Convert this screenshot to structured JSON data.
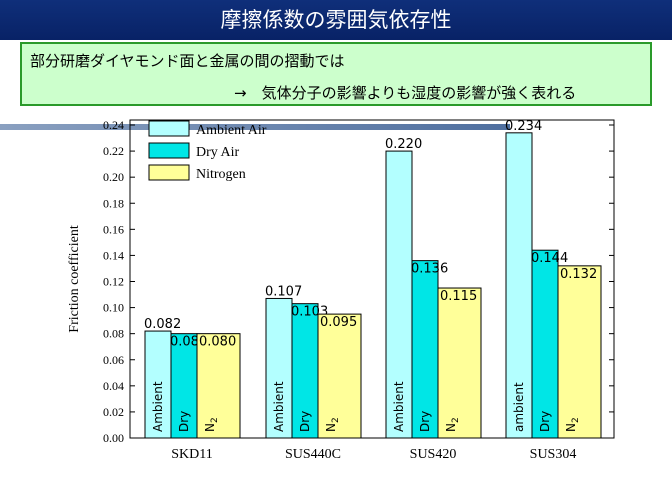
{
  "header": {
    "title": "摩擦係数の雰囲気依存性"
  },
  "subtitle": {
    "line1": "部分研磨ダイヤモンド面と金属の間の摺動では",
    "line2": "→　気体分子の影響よりも湿度の影響が強く表れる"
  },
  "chart_data": {
    "type": "bar",
    "categories": [
      "SKD11",
      "SUS440C",
      "SUS420",
      "SUS304"
    ],
    "series": [
      {
        "name": "Ambient Air",
        "values": [
          0.082,
          0.107,
          0.22,
          0.234
        ],
        "color": "#b3ffff",
        "value_labels": [
          "0.082",
          "0.107",
          "0.220",
          "0.234"
        ],
        "bar_labels": [
          "Ambient",
          "Ambient",
          "Ambient",
          "ambient"
        ]
      },
      {
        "name": "Dry Air",
        "values": [
          0.08,
          0.103,
          0.136,
          0.144
        ],
        "color": "#00e6e6",
        "value_labels": [
          "0.080",
          "0.103",
          "0.136",
          "0.144"
        ],
        "bar_labels": [
          "Dry",
          "Dry",
          "Dry",
          "Dry"
        ]
      },
      {
        "name": "Nitrogen",
        "values": [
          0.08,
          0.095,
          0.115,
          0.132
        ],
        "color": "#ffff99",
        "value_labels": [
          "0.080",
          "0.095",
          "0.115",
          "0.132"
        ],
        "bar_labels": [
          "N2",
          "N2",
          "N2",
          "N2"
        ]
      }
    ],
    "ylabel": "Friction coefficient",
    "xlabel": "",
    "ylim": [
      0,
      0.24
    ],
    "yticks": [
      "0.00",
      "0.02",
      "0.04",
      "0.06",
      "0.08",
      "0.10",
      "0.12",
      "0.14",
      "0.16",
      "0.18",
      "0.20",
      "0.22",
      "0.24"
    ],
    "legend_position": "top-left"
  }
}
